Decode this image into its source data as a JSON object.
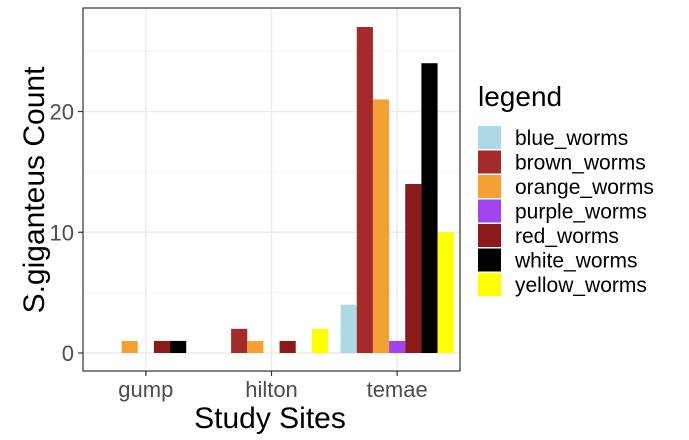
{
  "chart_data": {
    "type": "bar",
    "title": "",
    "xlabel": "Study Sites",
    "ylabel": "S.giganteus Count",
    "categories": [
      "gump",
      "hilton",
      "temae"
    ],
    "ylim": [
      0,
      28.5
    ],
    "yticks": [
      0,
      10,
      20
    ],
    "grid": true,
    "legend": {
      "title": "legend",
      "position": "right"
    },
    "series": [
      {
        "name": "blue_worms",
        "color": "#add8e6",
        "values": [
          0,
          0,
          4
        ]
      },
      {
        "name": "brown_worms",
        "color": "#a52a2a",
        "values": [
          0,
          2,
          27
        ]
      },
      {
        "name": "orange_worms",
        "color": "#f4a033",
        "values": [
          1,
          1,
          21
        ]
      },
      {
        "name": "purple_worms",
        "color": "#a044f0",
        "values": [
          0,
          0,
          1
        ]
      },
      {
        "name": "red_worms",
        "color": "#8b1a1a",
        "values": [
          1,
          1,
          14
        ]
      },
      {
        "name": "white_worms",
        "color": "#000000",
        "values": [
          1,
          0,
          24
        ]
      },
      {
        "name": "yellow_worms",
        "color": "#ffff00",
        "values": [
          0,
          2,
          10
        ]
      }
    ]
  },
  "colors": {
    "panel_border": "#333333",
    "grid_major": "#ebebeb",
    "grid_minor": "#f5f5f5"
  }
}
